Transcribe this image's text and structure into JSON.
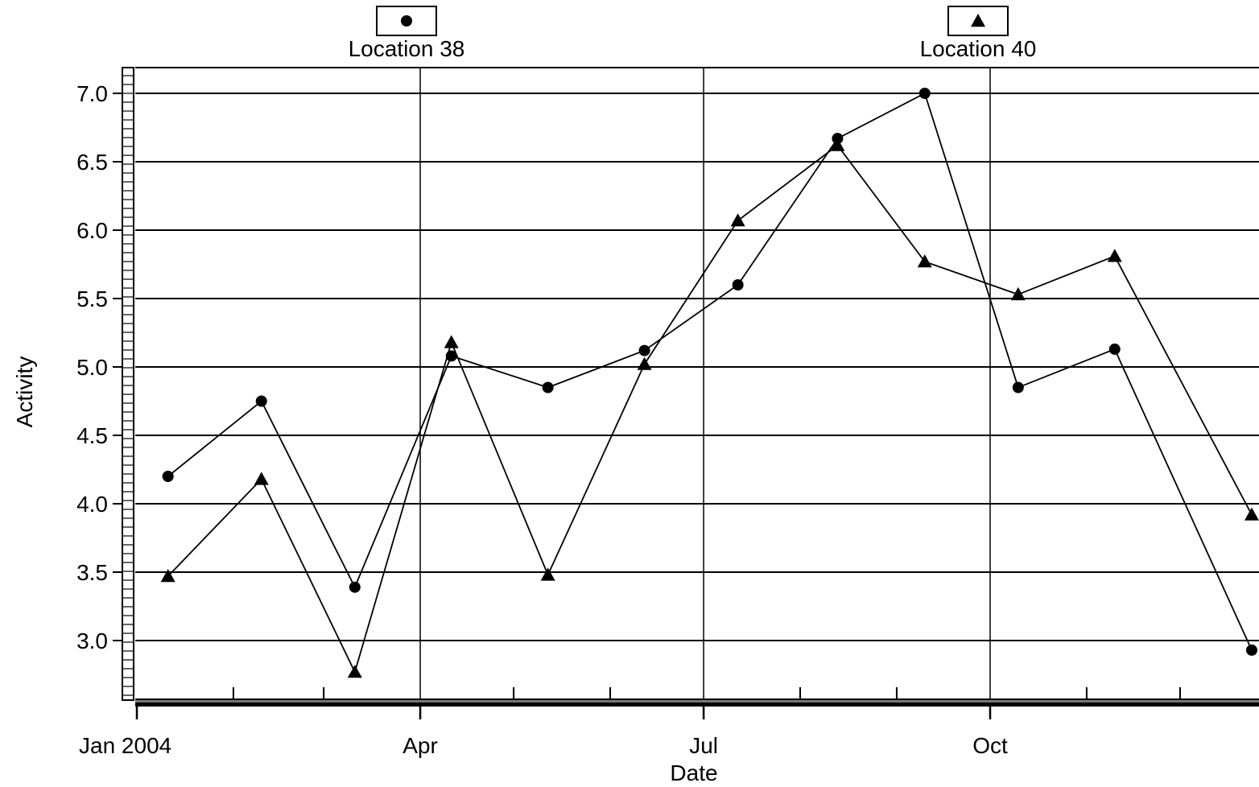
{
  "chart_data": {
    "type": "line",
    "title": "",
    "xlabel": "Date",
    "ylabel": "Activity",
    "x_axis": {
      "type": "date",
      "range": [
        "2004-01-01",
        "2004-12-31"
      ],
      "major_ticks": [
        {
          "date": "2004-01-01",
          "label": "Jan 2004"
        },
        {
          "date": "2004-04-01",
          "label": "Apr"
        },
        {
          "date": "2004-07-01",
          "label": "Jul"
        },
        {
          "date": "2004-10-01",
          "label": "Oct"
        }
      ],
      "minor_tick_dates": [
        "2004-02-01",
        "2004-03-01",
        "2004-05-01",
        "2004-06-01",
        "2004-08-01",
        "2004-09-01",
        "2004-11-01",
        "2004-12-01"
      ]
    },
    "y_axis": {
      "range": [
        2.55,
        7.2
      ],
      "ticks": [
        3.0,
        3.5,
        4.0,
        4.5,
        5.0,
        5.5,
        6.0,
        6.5,
        7.0
      ],
      "tick_labels": [
        "3.0",
        "3.5",
        "4.0",
        "4.5",
        "5.0",
        "5.5",
        "6.0",
        "6.5",
        "7.0"
      ]
    },
    "grid": true,
    "legend": "top",
    "series": [
      {
        "name": "Location 38",
        "marker": "circle",
        "color": "#000000",
        "points": [
          {
            "x": "2004-01-11",
            "y": 4.2
          },
          {
            "x": "2004-02-10",
            "y": 4.75
          },
          {
            "x": "2004-03-11",
            "y": 3.39
          },
          {
            "x": "2004-04-11",
            "y": 5.08
          },
          {
            "x": "2004-05-12",
            "y": 4.85
          },
          {
            "x": "2004-06-12",
            "y": 5.12
          },
          {
            "x": "2004-07-12",
            "y": 5.6
          },
          {
            "x": "2004-08-13",
            "y": 6.67
          },
          {
            "x": "2004-09-10",
            "y": 7.0
          },
          {
            "x": "2004-10-10",
            "y": 4.85
          },
          {
            "x": "2004-11-10",
            "y": 5.13
          },
          {
            "x": "2004-12-24",
            "y": 2.93
          }
        ]
      },
      {
        "name": "Location 40",
        "marker": "triangle",
        "color": "#000000",
        "points": [
          {
            "x": "2004-01-11",
            "y": 3.47
          },
          {
            "x": "2004-02-10",
            "y": 4.18
          },
          {
            "x": "2004-03-11",
            "y": 2.77
          },
          {
            "x": "2004-04-11",
            "y": 5.18
          },
          {
            "x": "2004-05-12",
            "y": 3.48
          },
          {
            "x": "2004-06-12",
            "y": 5.02
          },
          {
            "x": "2004-07-12",
            "y": 6.07
          },
          {
            "x": "2004-08-13",
            "y": 6.62
          },
          {
            "x": "2004-09-10",
            "y": 5.77
          },
          {
            "x": "2004-10-10",
            "y": 5.53
          },
          {
            "x": "2004-11-10",
            "y": 5.81
          },
          {
            "x": "2004-12-24",
            "y": 3.92
          }
        ]
      }
    ]
  }
}
